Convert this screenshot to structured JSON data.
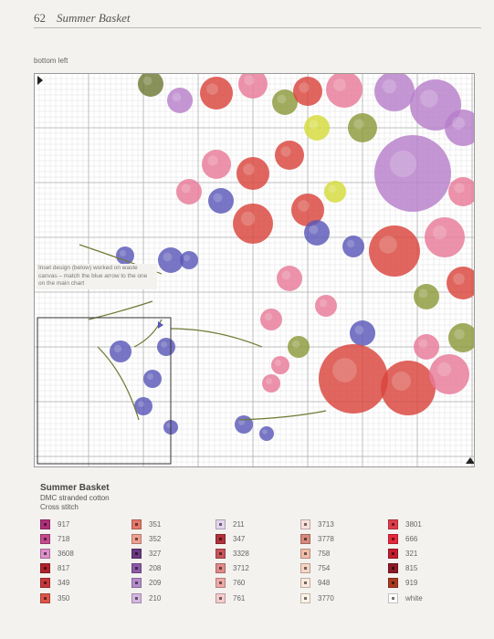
{
  "header": {
    "page_number": "62",
    "title": "Summer Basket"
  },
  "chart_section_label": "bottom left",
  "inset_note": "Inset design (below) worked on waste canvas – match the blue arrow to the one on the main chart",
  "key": {
    "title": "Summer Basket",
    "thread": "DMC stranded cotton",
    "stitch": "Cross stitch",
    "columns": [
      [
        {
          "code": "917",
          "color": "#b0307a"
        },
        {
          "code": "718",
          "color": "#c44a8e"
        },
        {
          "code": "3608",
          "color": "#dd8fca"
        },
        {
          "code": "817",
          "color": "#b0222a"
        },
        {
          "code": "349",
          "color": "#c8383a"
        },
        {
          "code": "350",
          "color": "#dd5548"
        }
      ],
      [
        {
          "code": "351",
          "color": "#e4786a"
        },
        {
          "code": "352",
          "color": "#f0a090"
        },
        {
          "code": "327",
          "color": "#6a3a82"
        },
        {
          "code": "208",
          "color": "#8c5aa8"
        },
        {
          "code": "209",
          "color": "#b58ccc"
        },
        {
          "code": "210",
          "color": "#d4b6e0"
        }
      ],
      [
        {
          "code": "211",
          "color": "#e6d4ee"
        },
        {
          "code": "347",
          "color": "#b0323a"
        },
        {
          "code": "3328",
          "color": "#c8545a"
        },
        {
          "code": "3712",
          "color": "#e08a88"
        },
        {
          "code": "760",
          "color": "#eeaaa6"
        },
        {
          "code": "761",
          "color": "#f6cccc"
        }
      ],
      [
        {
          "code": "3713",
          "color": "#f8e0dc"
        },
        {
          "code": "3778",
          "color": "#d88a7c"
        },
        {
          "code": "758",
          "color": "#f0bca8"
        },
        {
          "code": "754",
          "color": "#f6d4c4"
        },
        {
          "code": "948",
          "color": "#fbe8dc"
        },
        {
          "code": "3770",
          "color": "#fdf2e6"
        }
      ],
      [
        {
          "code": "3801",
          "color": "#e03c4a"
        },
        {
          "code": "666",
          "color": "#e8283a"
        },
        {
          "code": "321",
          "color": "#c41c30"
        },
        {
          "code": "815",
          "color": "#8c1a26"
        },
        {
          "code": "919",
          "color": "#aa3a22"
        },
        {
          "code": "white",
          "color": "#ffffff"
        }
      ]
    ]
  },
  "palette": {
    "grid_minor": "#d8d8d8",
    "grid_major": "#b0b0b0",
    "red": "#d9443c",
    "pink": "#e87a98",
    "purple": "#b77fc9",
    "blue": "#5a58b8",
    "green": "#8c9a3c",
    "yellow": "#d6dc3a",
    "olive": "#6e7a34"
  }
}
